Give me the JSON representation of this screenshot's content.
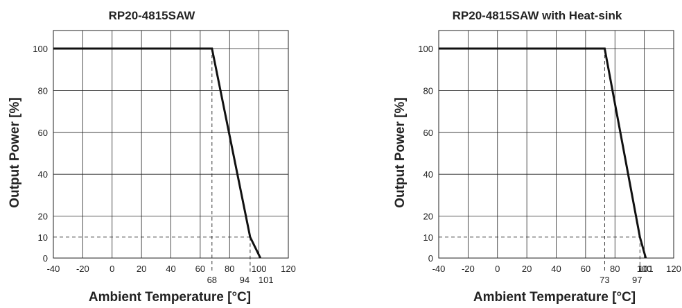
{
  "chart_data": [
    {
      "type": "line",
      "title": "RP20-4815SAW",
      "xlabel": "Ambient Temperature [°C]",
      "ylabel": "Output Power [%]",
      "xlim": [
        -40,
        120
      ],
      "ylim": [
        0,
        100
      ],
      "xticks": [
        "-40",
        "-20",
        "0",
        "20",
        "40",
        "60",
        "80",
        "100",
        "120"
      ],
      "yticks": [
        "0",
        "10",
        "20",
        "40",
        "60",
        "80",
        "100"
      ],
      "grid": true,
      "series": [
        {
          "x": [
            -40,
            68,
            94,
            101
          ],
          "y": [
            100,
            100,
            10,
            0
          ]
        }
      ],
      "annotations": [
        "68",
        "94",
        "101"
      ]
    },
    {
      "type": "line",
      "title": "RP20-4815SAW with Heat-sink",
      "xlabel": "Ambient Temperature [°C]",
      "ylabel": "Output Power [%]",
      "xlim": [
        -40,
        120
      ],
      "ylim": [
        0,
        100
      ],
      "xticks": [
        "-40",
        "-20",
        "0",
        "20",
        "40",
        "60",
        "80",
        "100",
        "120"
      ],
      "yticks": [
        "0",
        "10",
        "20",
        "40",
        "60",
        "80",
        "100"
      ],
      "grid": true,
      "series": [
        {
          "x": [
            -40,
            73,
            97,
            101
          ],
          "y": [
            100,
            100,
            10,
            0
          ]
        }
      ],
      "annotations": [
        "73",
        "97",
        "101"
      ]
    }
  ]
}
